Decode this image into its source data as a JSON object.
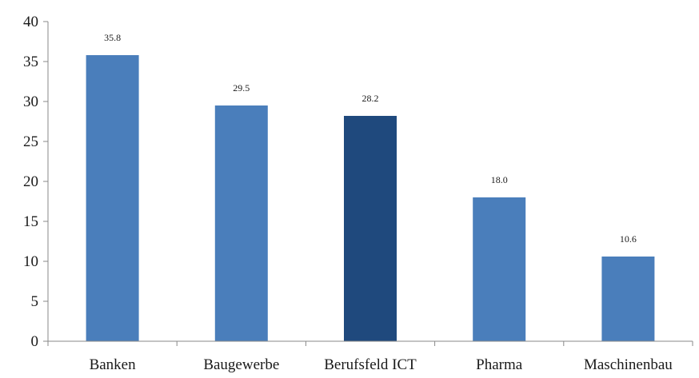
{
  "chart_data": {
    "type": "bar",
    "title": "",
    "xlabel": "",
    "ylabel": "",
    "categories": [
      "Banken",
      "Baugewerbe",
      "Berufsfeld ICT",
      "Pharma",
      "Maschinenbau"
    ],
    "values": [
      35.8,
      29.5,
      28.2,
      18.0,
      10.6
    ],
    "value_labels": [
      "35.8",
      "29.5",
      "28.2",
      "18.0",
      "10.6"
    ],
    "highlight_index": 2,
    "ylim": [
      0,
      40
    ],
    "yticks": [
      0,
      5,
      10,
      15,
      20,
      25,
      30,
      35,
      40
    ],
    "grid": false,
    "legend": "none",
    "colors": {
      "bar": "#4a7ebb",
      "highlight": "#1f497d",
      "axis": "#888888"
    }
  }
}
